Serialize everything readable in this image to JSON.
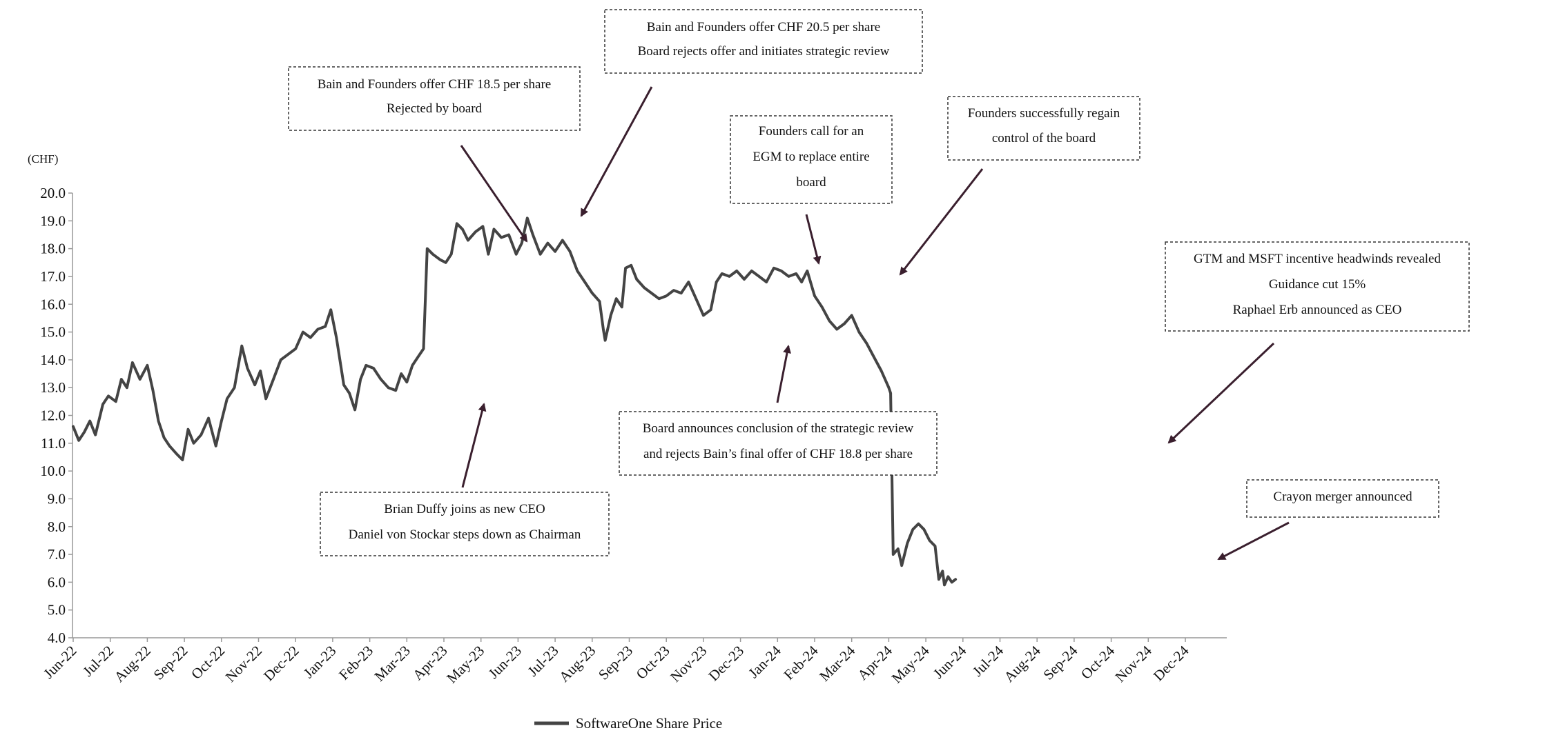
{
  "chart_data": {
    "type": "line",
    "unit_label": "(CHF)",
    "ylim": [
      4.0,
      20.0
    ],
    "y_ticks": [
      "4.0",
      "5.0",
      "6.0",
      "7.0",
      "8.0",
      "9.0",
      "10.0",
      "11.0",
      "12.0",
      "13.0",
      "14.0",
      "15.0",
      "16.0",
      "17.0",
      "18.0",
      "19.0",
      "20.0"
    ],
    "x_ticks": [
      "Jun-22",
      "Jul-22",
      "Aug-22",
      "Sep-22",
      "Oct-22",
      "Nov-22",
      "Dec-22",
      "Jan-23",
      "Feb-23",
      "Mar-23",
      "Apr-23",
      "May-23",
      "Jun-23",
      "Jul-23",
      "Aug-23",
      "Sep-23",
      "Oct-23",
      "Nov-23",
      "Dec-23",
      "Jan-24",
      "Feb-24",
      "Mar-24",
      "Apr-24",
      "May-24",
      "Jun-24",
      "Jul-24",
      "Aug-24",
      "Sep-24",
      "Oct-24",
      "Nov-24",
      "Dec-24"
    ],
    "series": [
      {
        "name": "SoftwareOne Share Price",
        "color": "#444444",
        "points": [
          [
            0,
            11.6
          ],
          [
            0.15,
            11.1
          ],
          [
            0.3,
            11.4
          ],
          [
            0.45,
            11.8
          ],
          [
            0.6,
            11.3
          ],
          [
            0.8,
            12.4
          ],
          [
            0.95,
            12.7
          ],
          [
            1.15,
            12.5
          ],
          [
            1.3,
            13.3
          ],
          [
            1.45,
            13.0
          ],
          [
            1.6,
            13.9
          ],
          [
            1.8,
            13.3
          ],
          [
            2.0,
            13.8
          ],
          [
            2.15,
            12.9
          ],
          [
            2.3,
            11.8
          ],
          [
            2.45,
            11.2
          ],
          [
            2.6,
            10.9
          ],
          [
            2.8,
            10.6
          ],
          [
            2.95,
            10.4
          ],
          [
            3.1,
            11.5
          ],
          [
            3.25,
            11.0
          ],
          [
            3.45,
            11.3
          ],
          [
            3.65,
            11.9
          ],
          [
            3.85,
            10.9
          ],
          [
            4.0,
            11.8
          ],
          [
            4.15,
            12.6
          ],
          [
            4.35,
            13.0
          ],
          [
            4.55,
            14.5
          ],
          [
            4.7,
            13.7
          ],
          [
            4.9,
            13.1
          ],
          [
            5.05,
            13.6
          ],
          [
            5.2,
            12.6
          ],
          [
            5.4,
            13.3
          ],
          [
            5.6,
            14.0
          ],
          [
            5.8,
            14.2
          ],
          [
            6.0,
            14.4
          ],
          [
            6.2,
            15.0
          ],
          [
            6.4,
            14.8
          ],
          [
            6.6,
            15.1
          ],
          [
            6.8,
            15.2
          ],
          [
            6.95,
            15.8
          ],
          [
            7.1,
            14.8
          ],
          [
            7.3,
            13.1
          ],
          [
            7.45,
            12.8
          ],
          [
            7.6,
            12.2
          ],
          [
            7.75,
            13.3
          ],
          [
            7.9,
            13.8
          ],
          [
            8.1,
            13.7
          ],
          [
            8.3,
            13.3
          ],
          [
            8.5,
            13.0
          ],
          [
            8.7,
            12.9
          ],
          [
            8.85,
            13.5
          ],
          [
            9.0,
            13.2
          ],
          [
            9.15,
            13.8
          ],
          [
            9.3,
            14.1
          ],
          [
            9.45,
            14.4
          ],
          [
            9.55,
            18.0
          ],
          [
            9.7,
            17.8
          ],
          [
            9.9,
            17.6
          ],
          [
            10.05,
            17.5
          ],
          [
            10.2,
            17.8
          ],
          [
            10.35,
            18.9
          ],
          [
            10.5,
            18.7
          ],
          [
            10.65,
            18.3
          ],
          [
            10.85,
            18.6
          ],
          [
            11.05,
            18.8
          ],
          [
            11.2,
            17.8
          ],
          [
            11.35,
            18.7
          ],
          [
            11.55,
            18.4
          ],
          [
            11.75,
            18.5
          ],
          [
            11.95,
            17.8
          ],
          [
            12.1,
            18.2
          ],
          [
            12.25,
            19.1
          ],
          [
            12.4,
            18.5
          ],
          [
            12.6,
            17.8
          ],
          [
            12.8,
            18.2
          ],
          [
            13.0,
            17.9
          ],
          [
            13.2,
            18.3
          ],
          [
            13.4,
            17.9
          ],
          [
            13.6,
            17.2
          ],
          [
            13.8,
            16.8
          ],
          [
            14.0,
            16.4
          ],
          [
            14.2,
            16.1
          ],
          [
            14.3,
            15.1
          ],
          [
            14.35,
            14.7
          ],
          [
            14.5,
            15.6
          ],
          [
            14.65,
            16.2
          ],
          [
            14.8,
            15.9
          ],
          [
            14.9,
            17.3
          ],
          [
            15.05,
            17.4
          ],
          [
            15.2,
            16.9
          ],
          [
            15.4,
            16.6
          ],
          [
            15.6,
            16.4
          ],
          [
            15.8,
            16.2
          ],
          [
            16.0,
            16.3
          ],
          [
            16.2,
            16.5
          ],
          [
            16.4,
            16.4
          ],
          [
            16.6,
            16.8
          ],
          [
            16.8,
            16.2
          ],
          [
            17.0,
            15.6
          ],
          [
            17.2,
            15.8
          ],
          [
            17.35,
            16.8
          ],
          [
            17.5,
            17.1
          ],
          [
            17.7,
            17.0
          ],
          [
            17.9,
            17.2
          ],
          [
            18.1,
            16.9
          ],
          [
            18.3,
            17.2
          ],
          [
            18.5,
            17.0
          ],
          [
            18.7,
            16.8
          ],
          [
            18.9,
            17.3
          ],
          [
            19.1,
            17.2
          ],
          [
            19.3,
            17.0
          ],
          [
            19.5,
            17.1
          ],
          [
            19.65,
            16.8
          ],
          [
            19.8,
            17.2
          ],
          [
            20.0,
            16.3
          ],
          [
            20.2,
            15.9
          ],
          [
            20.4,
            15.4
          ],
          [
            20.6,
            15.1
          ],
          [
            20.8,
            15.3
          ],
          [
            21.0,
            15.6
          ],
          [
            21.2,
            15.0
          ],
          [
            21.4,
            14.6
          ],
          [
            21.6,
            14.1
          ],
          [
            21.8,
            13.6
          ],
          [
            22.0,
            13.0
          ],
          [
            22.05,
            12.8
          ],
          [
            22.12,
            7.0
          ],
          [
            22.25,
            7.2
          ],
          [
            22.35,
            6.6
          ],
          [
            22.5,
            7.4
          ],
          [
            22.65,
            7.9
          ],
          [
            22.8,
            8.1
          ],
          [
            22.95,
            7.9
          ],
          [
            23.1,
            7.5
          ],
          [
            23.25,
            7.3
          ],
          [
            23.35,
            6.1
          ],
          [
            23.45,
            6.4
          ],
          [
            23.5,
            5.9
          ],
          [
            23.6,
            6.2
          ],
          [
            23.7,
            6.0
          ],
          [
            23.8,
            6.1
          ]
        ]
      }
    ]
  },
  "legend": {
    "label": "SoftwareOne Share Price"
  },
  "annotations": [
    {
      "lines": [
        "Bain and Founders offer CHF 18.5 per share",
        "Rejected by board"
      ]
    },
    {
      "lines": [
        "Bain and Founders offer CHF 20.5 per share",
        "Board rejects offer and initiates strategic review"
      ]
    },
    {
      "lines": [
        "Founders call for an",
        "EGM to replace entire",
        "board"
      ]
    },
    {
      "lines": [
        "Founders successfully regain",
        "control of the board"
      ]
    },
    {
      "lines": [
        "Board announces conclusion of the strategic review",
        "and rejects Bain’s final offer of CHF 18.8 per share"
      ]
    },
    {
      "lines": [
        "Brian Duffy joins as new CEO",
        "Daniel von Stockar steps down as Chairman"
      ]
    },
    {
      "lines": [
        "GTM and MSFT incentive headwinds revealed",
        "Guidance cut 15%",
        "Raphael Erb announced as CEO"
      ]
    },
    {
      "lines": [
        "Crayon merger announced"
      ]
    }
  ]
}
